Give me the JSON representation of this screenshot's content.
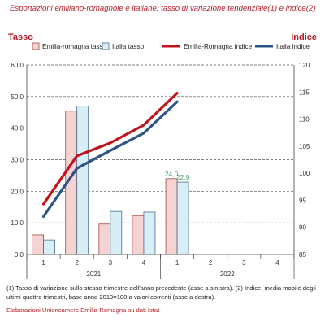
{
  "chart_data": {
    "type": "bar",
    "title": "Esportazioni emiliano-romagnole e italiane: tasso di variazione tendenziale(1) e indice(2)",
    "left_axis_label": "Tasso",
    "right_axis_label": "Indice",
    "categories": [
      "1",
      "2",
      "3",
      "4",
      "1",
      "2",
      "3",
      "4"
    ],
    "groups": [
      "2021",
      "2022"
    ],
    "y_left": {
      "min": 0,
      "max": 60,
      "step": 10,
      "tick_labels": [
        "0,0",
        "10,0",
        "20,0",
        "30,0",
        "40,0",
        "50,0",
        "60,0"
      ]
    },
    "y_right": {
      "min": 85,
      "max": 120,
      "step": 5,
      "tick_labels": [
        "85",
        "90",
        "95",
        "100",
        "105",
        "110",
        "115",
        "120"
      ]
    },
    "grid": "dashed-horizontal",
    "legend_position": "top",
    "series": [
      {
        "name": "Emilia-romagna tasso",
        "kind": "bar",
        "axis": "left",
        "values": [
          6.2,
          45.4,
          9.6,
          12.3,
          24.0,
          null,
          null,
          null
        ],
        "fill": "#f5d3d3",
        "stroke": "#a64848"
      },
      {
        "name": "Italia tasso",
        "kind": "bar",
        "axis": "left",
        "values": [
          4.6,
          47.0,
          13.6,
          13.4,
          22.9,
          null,
          null,
          null
        ],
        "fill": "#d8eef7",
        "stroke": "#4a6e8c"
      },
      {
        "name": "Emilia-Romagna indice",
        "kind": "line",
        "axis": "right",
        "values": [
          94.3,
          103.2,
          105.6,
          108.9,
          114.8,
          null,
          null,
          null
        ],
        "color": "#c0151f"
      },
      {
        "name": "Italia indice",
        "kind": "line",
        "axis": "right",
        "values": [
          92.0,
          100.9,
          104.2,
          107.4,
          113.2,
          null,
          null,
          null
        ],
        "color": "#2e5485"
      }
    ],
    "data_labels": [
      {
        "series": "Emilia-romagna tasso",
        "index": 4,
        "text": "24,0"
      },
      {
        "series": "Italia tasso",
        "index": 4,
        "text": "22,9"
      }
    ]
  },
  "footnote": "(1) Tasso di variazione sullo stesso trimestre dell'anno precedente (asse a sinistra). (2) Indice: media mobile degli ultimi quattro trimestri, base anno 2019=100 a valori correnti (asse a destra).",
  "source": "Elaborazioni Unioncamere Emilia-Romagna su dati Istat"
}
